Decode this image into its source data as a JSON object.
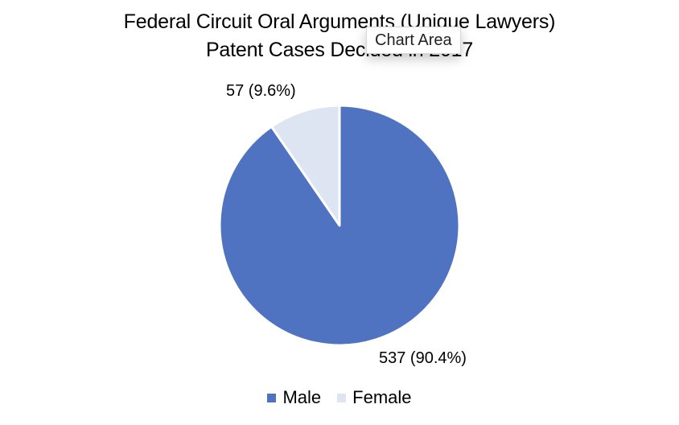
{
  "tooltip": "Chart Area",
  "chart_data": {
    "type": "pie",
    "title_lines": [
      "Federal Circuit Oral Arguments (Unique Lawyers)",
      "Patent Cases Decided in 2017"
    ],
    "categories": [
      "Male",
      "Female"
    ],
    "values": [
      537,
      57
    ],
    "percentages": [
      90.4,
      9.6
    ],
    "data_labels": [
      "537 (90.4%)",
      "57 (9.6%)"
    ],
    "colors": [
      "#5073c1",
      "#dde4f2"
    ],
    "legend": {
      "position": "bottom",
      "entries": [
        "Male",
        "Female"
      ]
    }
  }
}
